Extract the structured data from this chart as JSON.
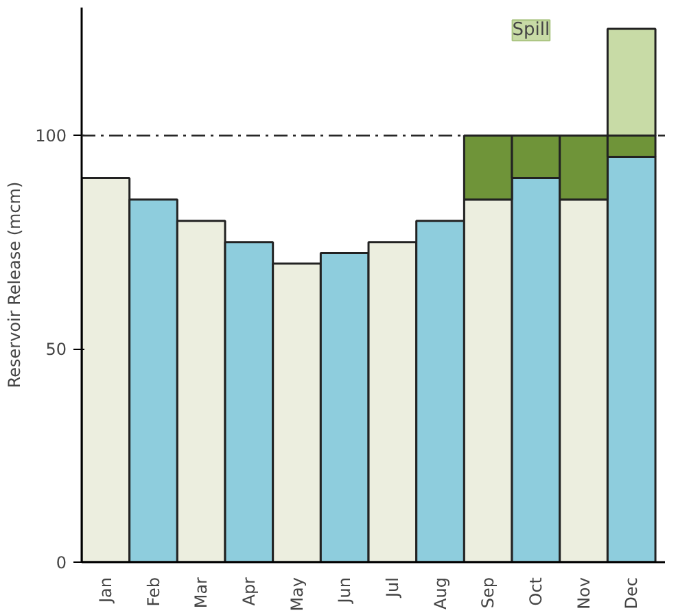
{
  "chart_data": {
    "type": "bar",
    "stacked": true,
    "ylabel": "Reservoir Release (mcm)",
    "categories": [
      "Jan",
      "Feb",
      "Mar",
      "Apr",
      "May",
      "Jun",
      "Jul",
      "Aug",
      "Sep",
      "Oct",
      "Nov",
      "Dec"
    ],
    "series": [
      {
        "colors": [
          "#eceedf",
          "#8ecddd",
          "#eceedf",
          "#8ecddd",
          "#eceedf",
          "#8ecddd",
          "#eceedf",
          "#8ecddd",
          "#eceedf",
          "#8ecddd",
          "#eceedf",
          "#8ecddd"
        ],
        "values": [
          90,
          85,
          80,
          75,
          70,
          72.5,
          75,
          80,
          85,
          90,
          85,
          95
        ]
      },
      {
        "color": "#6f9439",
        "values": [
          null,
          null,
          null,
          null,
          null,
          null,
          null,
          null,
          15,
          10,
          15,
          5
        ]
      },
      {
        "color": "#c8dba6",
        "values": [
          null,
          null,
          null,
          null,
          null,
          null,
          null,
          null,
          null,
          null,
          null,
          25
        ]
      }
    ],
    "ylim": [
      0,
      130
    ],
    "yticks": [
      0,
      50,
      100
    ],
    "grid": false,
    "ref_lines": [
      {
        "axis": "y",
        "value": 100,
        "line_style": "dashed",
        "color": "#222222"
      }
    ],
    "annotations": [
      "Spill"
    ]
  }
}
